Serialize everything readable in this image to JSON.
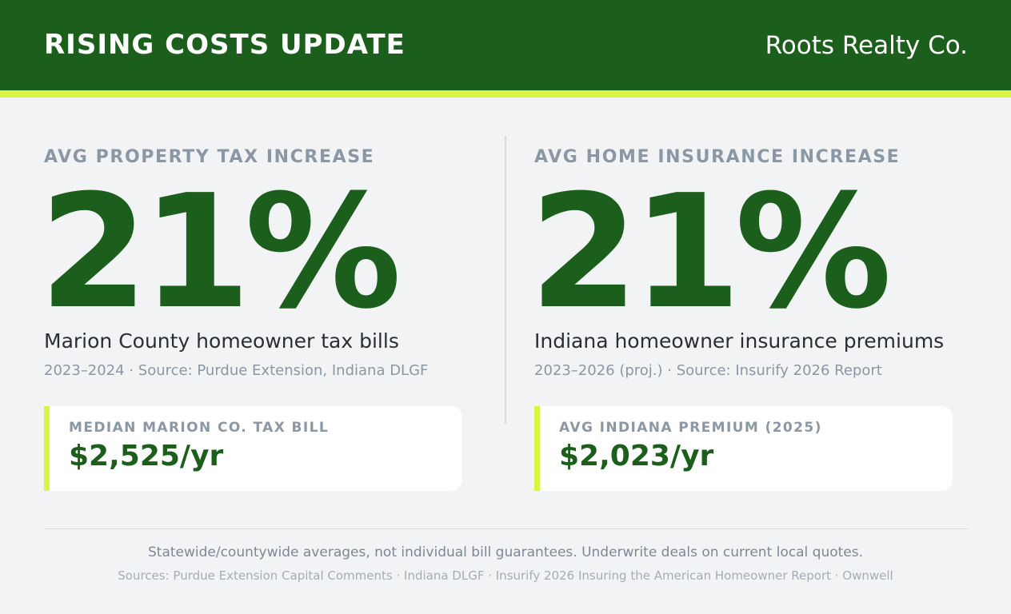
{
  "header": {
    "title": "RISING COSTS UPDATE",
    "brand": "Roots Realty Co."
  },
  "stats": [
    {
      "label": "AVG PROPERTY TAX INCREASE",
      "value": "21%",
      "description": "Marion County homeowner tax bills",
      "source": "2023–2024 · Source: Purdue Extension, Indiana DLGF",
      "card_label": "MEDIAN MARION CO. TAX BILL",
      "card_value": "$2,525/yr"
    },
    {
      "label": "AVG HOME INSURANCE INCREASE",
      "value": "21%",
      "description": "Indiana homeowner insurance premiums",
      "source": "2023–2026 (proj.) · Source: Insurify 2026 Report",
      "card_label": "AVG INDIANA PREMIUM (2025)",
      "card_value": "$2,023/yr"
    }
  ],
  "footer": {
    "note": "Statewide/countywide averages, not individual bill guarantees. Underwrite deals on current local quotes.",
    "sources": "Sources: Purdue Extension Capital Comments · Indiana DLGF · Insurify 2026 Insuring the American Homeowner Report · Ownwell"
  },
  "colors": {
    "brand_green": "#1c5e1c",
    "accent_lime": "#d7f542",
    "background": "#f1f3f5"
  }
}
